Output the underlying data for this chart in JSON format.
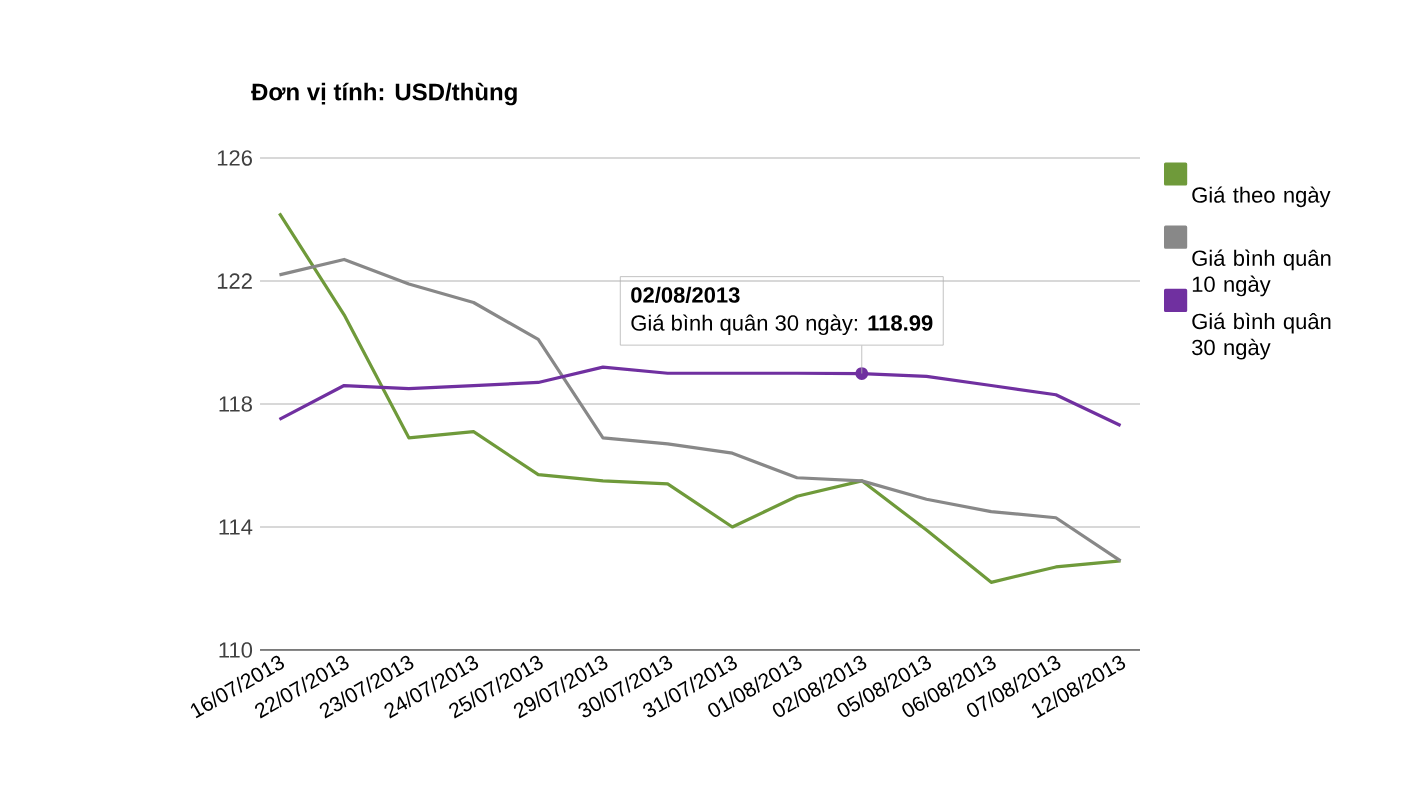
{
  "chart_data": {
    "type": "line",
    "title": "Đơn vị tính: USD/thùng",
    "categories": [
      "16/07/2013",
      "22/07/2013",
      "23/07/2013",
      "24/07/2013",
      "25/07/2013",
      "29/07/2013",
      "30/07/2013",
      "31/07/2013",
      "01/08/2013",
      "02/08/2013",
      "05/08/2013",
      "06/08/2013",
      "07/08/2013",
      "12/08/2013"
    ],
    "series": [
      {
        "name": "Giá theo ngày",
        "color": "#6f9a3a",
        "values": [
          124.2,
          120.9,
          116.9,
          117.1,
          115.7,
          115.5,
          115.4,
          114.0,
          115.0,
          115.5,
          113.9,
          112.2,
          112.7,
          112.9
        ]
      },
      {
        "name": "Giá bình quân 10 ngày",
        "color": "#888888",
        "values": [
          122.2,
          122.7,
          121.9,
          121.3,
          120.1,
          116.9,
          116.7,
          116.4,
          115.6,
          115.5,
          114.9,
          114.5,
          114.3,
          112.9
        ]
      },
      {
        "name": "Giá bình quân 30 ngày",
        "color": "#7030a0",
        "values": [
          117.5,
          118.6,
          118.5,
          118.6,
          118.7,
          119.2,
          119.0,
          119.0,
          119.0,
          118.99,
          118.9,
          118.6,
          118.3,
          117.3
        ]
      }
    ],
    "annotations": [
      {
        "text": "Giá bình quân 30 ngày: **118.99**",
        "x": "02/08/2013",
        "y": 118.99
      },
      "02/08/2013"
    ],
    "ylim": [
      110,
      126
    ],
    "yticks": [
      110,
      114,
      118,
      122,
      126
    ],
    "grid": "y",
    "legend": "right",
    "marker": "none",
    "line_style": "solid"
  }
}
